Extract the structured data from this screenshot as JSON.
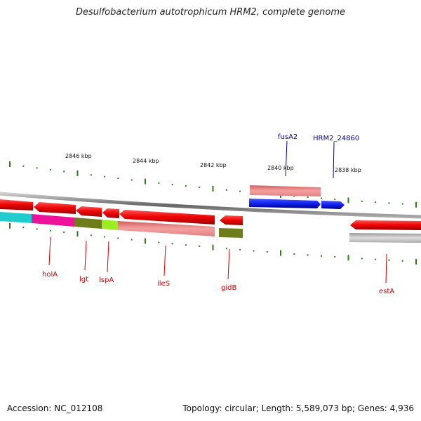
{
  "title": "Desulfobacterium autotrophicum HRM2, complete genome",
  "footer": {
    "accession": "Accession: NC_012108",
    "summary": "Topology: circular; Length: 5,589,073 bp; Genes: 4,936"
  },
  "ticks": [
    "2846 kbp",
    "2844 kbp",
    "2842 kbp",
    "2840 kbp",
    "2838 kbp"
  ],
  "gene_labels_top": [
    "fusA2",
    "HRM2_24860"
  ],
  "gene_labels_bottom": [
    "holA",
    "lgt",
    "lspA",
    "ileS",
    "gidB",
    "estA"
  ],
  "colors": {
    "cds": "#ee0000",
    "highlight": "#2233dd",
    "label_red": "#cc0000",
    "label_blue": "#000099",
    "tick_green": "#2e7d1b",
    "backbone": "#808080"
  }
}
